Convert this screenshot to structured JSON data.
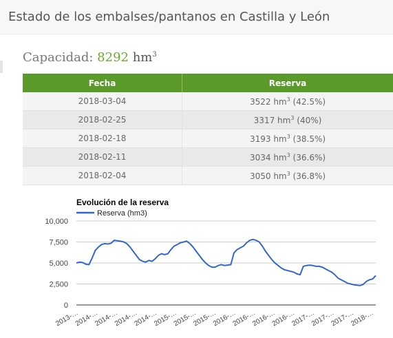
{
  "page": {
    "title": "Estado de los embalses/pantanos en Castilla y León"
  },
  "capacity": {
    "label": "Capacidad:",
    "value": "8292",
    "unit": "hm",
    "unit_exp": "3"
  },
  "table": {
    "headers": [
      "Fecha",
      "Reserva"
    ],
    "rows": [
      {
        "date": "2018-03-04",
        "value": "3522",
        "pct": "(42.5%)"
      },
      {
        "date": "2018-02-25",
        "value": "3317",
        "pct": "(40%)"
      },
      {
        "date": "2018-02-18",
        "value": "3193",
        "pct": "(38.5%)"
      },
      {
        "date": "2018-02-11",
        "value": "3034",
        "pct": "(36.6%)"
      },
      {
        "date": "2018-02-04",
        "value": "3050",
        "pct": "(36.8%)"
      }
    ],
    "unit": "hm",
    "unit_exp": "3"
  },
  "colors": {
    "header_green": "#5a9a2a",
    "capacity_green": "#6aaa2c",
    "series_line": "#3366cc"
  },
  "chart_data": {
    "type": "line",
    "title": "Evolución de la reserva",
    "legend": "top-left",
    "series": [
      {
        "name": "Reserva (hm3)",
        "y": [
          5000,
          5100,
          5050,
          4850,
          4800,
          5600,
          6500,
          6900,
          7200,
          7300,
          7250,
          7350,
          7700,
          7650,
          7600,
          7500,
          7300,
          6900,
          6400,
          5900,
          5400,
          5200,
          5100,
          5300,
          5200,
          5500,
          5900,
          6100,
          6000,
          6100,
          6600,
          7000,
          7200,
          7400,
          7500,
          7600,
          7300,
          6900,
          6400,
          5900,
          5400,
          5000,
          4700,
          4500,
          4500,
          4700,
          4800,
          4700,
          4750,
          4800,
          6200,
          6600,
          6800,
          7000,
          7400,
          7700,
          7800,
          7700,
          7500,
          7000,
          6400,
          5900,
          5400,
          5000,
          4700,
          4400,
          4200,
          4100,
          4000,
          3900,
          3700,
          3600,
          4600,
          4700,
          4750,
          4700,
          4600,
          4600,
          4500,
          4300,
          4100,
          3900,
          3600,
          3200,
          3000,
          2800,
          2600,
          2500,
          2400,
          2350,
          2300,
          2450,
          2800,
          3000,
          3100,
          3500
        ]
      }
    ],
    "y_ticks": [
      "10,000",
      "7,500",
      "5,000",
      "2,500",
      "0"
    ],
    "x_ticks": [
      "2013-…",
      "2014-…",
      "2014-…",
      "2014-…",
      "2014-…",
      "2015-…",
      "2015-…",
      "2015-…",
      "2016-…",
      "2016-…",
      "2016-…",
      "2016-…",
      "2017-…",
      "2017-…",
      "2017-…",
      "2018-…"
    ],
    "ylim": [
      0,
      10000
    ],
    "grid": true
  }
}
